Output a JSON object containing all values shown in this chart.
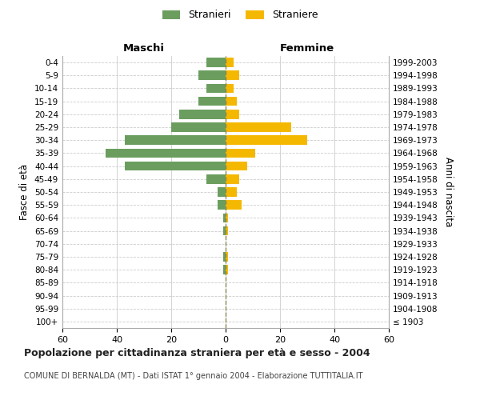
{
  "age_groups": [
    "100+",
    "95-99",
    "90-94",
    "85-89",
    "80-84",
    "75-79",
    "70-74",
    "65-69",
    "60-64",
    "55-59",
    "50-54",
    "45-49",
    "40-44",
    "35-39",
    "30-34",
    "25-29",
    "20-24",
    "15-19",
    "10-14",
    "5-9",
    "0-4"
  ],
  "birth_years": [
    "≤ 1903",
    "1904-1908",
    "1909-1913",
    "1914-1918",
    "1919-1923",
    "1924-1928",
    "1929-1933",
    "1934-1938",
    "1939-1943",
    "1944-1948",
    "1949-1953",
    "1954-1958",
    "1959-1963",
    "1964-1968",
    "1969-1973",
    "1974-1978",
    "1979-1983",
    "1984-1988",
    "1989-1993",
    "1994-1998",
    "1999-2003"
  ],
  "maschi": [
    0,
    0,
    0,
    0,
    1,
    1,
    0,
    1,
    1,
    3,
    3,
    7,
    37,
    44,
    37,
    20,
    17,
    10,
    7,
    10,
    7
  ],
  "femmine": [
    0,
    0,
    0,
    0,
    1,
    1,
    0,
    1,
    1,
    6,
    4,
    5,
    8,
    11,
    30,
    24,
    5,
    4,
    3,
    5,
    3
  ],
  "color_maschi": "#6b9e5e",
  "color_femmine": "#f5b800",
  "title": "Popolazione per cittadinanza straniera per età e sesso - 2004",
  "subtitle": "COMUNE DI BERNALDA (MT) - Dati ISTAT 1° gennaio 2004 - Elaborazione TUTTITALIA.IT",
  "ylabel_left": "Fasce di età",
  "ylabel_right": "Anni di nascita",
  "legend_stranieri": "Stranieri",
  "legend_straniere": "Straniere",
  "label_maschi": "Maschi",
  "label_femmine": "Femmine",
  "xlim": 60,
  "background_color": "#ffffff",
  "grid_color": "#cccccc"
}
